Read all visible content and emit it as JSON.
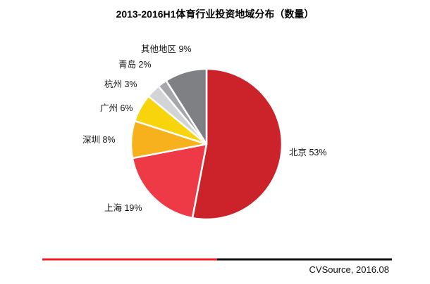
{
  "chart_data": {
    "type": "pie",
    "title": "2013-2016H1体育行业投资地域分布（数量）",
    "start": "top",
    "direction": "clockwise",
    "slices": [
      {
        "label": "北京",
        "value": 53,
        "display": "北京 53%",
        "color": "#cc2229"
      },
      {
        "label": "上海",
        "value": 19,
        "display": "上海 19%",
        "color": "#ee3a47"
      },
      {
        "label": "深圳",
        "value": 8,
        "display": "深圳 8%",
        "color": "#f6b11d"
      },
      {
        "label": "广州",
        "value": 6,
        "display": "广州 6%",
        "color": "#f7d40c"
      },
      {
        "label": "杭州",
        "value": 3,
        "display": "杭州 3%",
        "color": "#d3d4d6"
      },
      {
        "label": "青岛",
        "value": 2,
        "display": "青岛 2%",
        "color": "#a6a7aa"
      },
      {
        "label": "其他地区",
        "value": 9,
        "display": "其他地区 9%",
        "color": "#7f8084"
      }
    ]
  },
  "footer": {
    "source": "CVSource, 2016.08",
    "accent_color": "#ee1c25",
    "line_color": "#111111"
  }
}
